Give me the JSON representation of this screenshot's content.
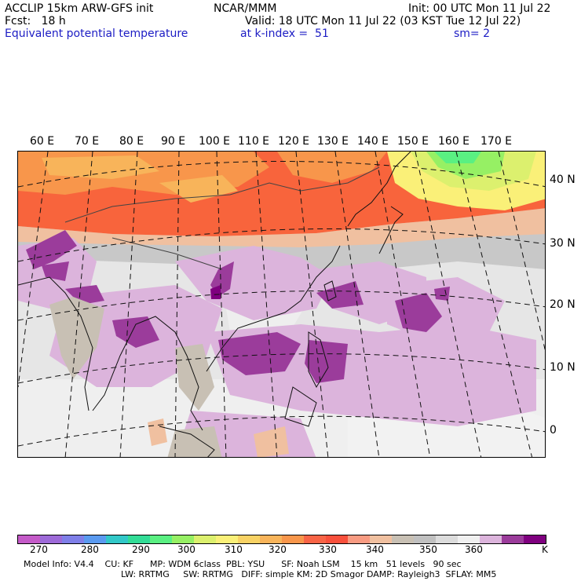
{
  "header": {
    "model": "ACCLIP 15km ARW-GFS init",
    "forecast": "Fcst:   18 h",
    "org": "NCAR/MMM",
    "init": "Init: 00 UTC Mon 11 Jul 22",
    "valid": "Valid: 18 UTC Mon 11 Jul 22 (03 KST Tue 12 Jul 22)",
    "field": "Equivalent potential temperature",
    "level": "at k-index =  51",
    "smooth": "sm= 2"
  },
  "map": {
    "lon_labels": [
      "60 E",
      "70 E",
      "80 E",
      "90 E",
      "100 E",
      "110 E",
      "120 E",
      "130 E",
      "140 E",
      "150 E",
      "160 E",
      "170 E"
    ],
    "lat_labels": [
      "40 N",
      "30 N",
      "20 N",
      "10 N",
      "0"
    ]
  },
  "colorbar": {
    "unit": "K",
    "labels": [
      "270",
      "280",
      "290",
      "300",
      "310",
      "320",
      "330",
      "340",
      "350",
      "360"
    ],
    "colors": [
      "#c45ac8",
      "#9d6ad8",
      "#7f7fe8",
      "#5a9af0",
      "#32c8c8",
      "#32dc96",
      "#5af082",
      "#96f064",
      "#dcf06e",
      "#faf078",
      "#f8d264",
      "#f8b45a",
      "#f8964b",
      "#f86446",
      "#f8503c",
      "#f89b82",
      "#f0c0a0",
      "#c8c0b4",
      "#c0c0c0",
      "#dcdcdc",
      "#f0f0f0",
      "#dcb4dc",
      "#9b3c9b",
      "#7f007f"
    ]
  },
  "footer": {
    "line1": "Model Info: V4.4    CU: KF      MP: WDM 6class  PBL: YSU      SF: Noah LSM    15 km   51 levels   90 sec",
    "line2": "LW: RRTMG     SW: RRTMG   DIFF: simple KM: 2D Smagor DAMP: Rayleigh3  SFLAY: MM5"
  }
}
